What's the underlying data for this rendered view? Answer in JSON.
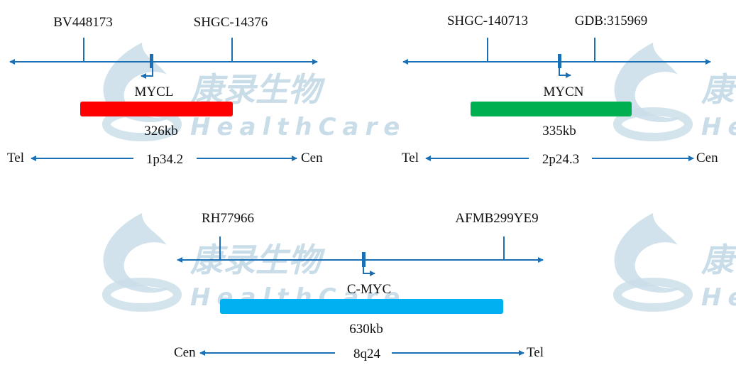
{
  "watermark": {
    "cn": "康录生物",
    "en": "HealthCare",
    "color": "#c9dde9"
  },
  "line_color": "#1a6fb5",
  "panels": [
    {
      "markers": [
        "BV448173",
        "SHGC-14376"
      ],
      "gene": "MYCL",
      "size": "326kb",
      "band": "1p34.2",
      "left_end": "Tel",
      "right_end": "Cen",
      "bar_color": "#ff0000",
      "direction": "left"
    },
    {
      "markers": [
        "SHGC-140713",
        "GDB:315969"
      ],
      "gene": "MYCN",
      "size": "335kb",
      "band": "2p24.3",
      "left_end": "Tel",
      "right_end": "Cen",
      "bar_color": "#00b050",
      "direction": "right"
    },
    {
      "markers": [
        "RH77966",
        "AFMB299YE9"
      ],
      "gene": "C-MYC",
      "size": "630kb",
      "band": "8q24",
      "left_end": "Cen",
      "right_end": "Tel",
      "bar_color": "#00b0f0",
      "direction": "right"
    }
  ]
}
